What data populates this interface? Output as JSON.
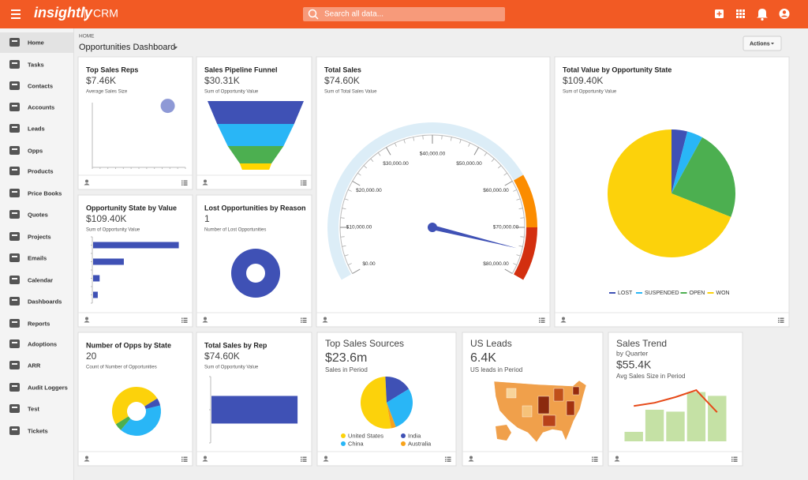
{
  "topbar": {
    "logo": "insightly",
    "app": "CRM",
    "search_placeholder": "Search all data..."
  },
  "sidebar": {
    "active": 0,
    "items": [
      "Home",
      "Tasks",
      "Contacts",
      "Accounts",
      "Leads",
      "Opps",
      "Products",
      "Price Books",
      "Quotes",
      "Projects",
      "Emails",
      "Calendar",
      "Dashboards",
      "Reports",
      "Adoptions",
      "ARR",
      "Audit Loggers",
      "Test",
      "Tickets"
    ]
  },
  "breadcrumb": "HOME",
  "page_title": "Opportunities Dashboard",
  "actions_button": "Actions",
  "widgets": [
    {
      "title": "Top Sales Reps",
      "value": "$7.46K",
      "caption": "Average Sales Size",
      "chart": {
        "type": "scatter",
        "color": "#8e99d6",
        "xlim": [
          0,
          100
        ],
        "ylim": [
          0,
          100
        ],
        "points": [
          {
            "x": 81,
            "y": 95
          }
        ]
      }
    },
    {
      "title": "Sales Pipeline Funnel",
      "value": "$30.31K",
      "caption": "Sum of Opportunity Value",
      "chart": {
        "type": "funnel",
        "values": [
          100,
          80,
          58,
          33
        ],
        "colors": [
          "#3f51b5",
          "#29b6f6",
          "#4caf50",
          "#ffd600"
        ]
      }
    },
    {
      "title": "Total Sales",
      "value": "$74.60K",
      "caption": "Sum of Total Sales Value",
      "chart": {
        "type": "gauge",
        "value": 74600,
        "ylim": [
          0,
          80000
        ],
        "yticks": [
          {
            "value": 0,
            "label": "$0.00"
          },
          {
            "value": 10000,
            "label": "$10,000.00"
          },
          {
            "value": 20000,
            "label": "$20,000.00"
          },
          {
            "value": 30000,
            "label": "$30,000.00"
          },
          {
            "value": 40000,
            "label": "$40,000.00"
          },
          {
            "value": 50000,
            "label": "$50,000.00"
          },
          {
            "value": 60000,
            "label": "$60,000.00"
          },
          {
            "value": 70000,
            "label": "$70,000.00"
          },
          {
            "value": 80000,
            "label": "$80,000.00"
          }
        ],
        "bands": [
          {
            "from": 0,
            "to": 60000,
            "color": "#dcedf7"
          },
          {
            "from": 60000,
            "to": 70000,
            "color": "#fb8c00"
          },
          {
            "from": 70000,
            "to": 80000,
            "color": "#d32f0f"
          }
        ],
        "needle_color": "#3f51b5"
      }
    },
    {
      "title": "Total Value by Opportunity State",
      "value": "$109.40K",
      "caption": "Sum of Opportunity Value",
      "chart": {
        "type": "pie",
        "categories": [
          "LOST",
          "SUSPENDED",
          "OPEN",
          "WON"
        ],
        "values": [
          4,
          4,
          23,
          69
        ],
        "colors": [
          "#3f51b5",
          "#29b6f6",
          "#4caf50",
          "#fcd20b"
        ]
      }
    },
    {
      "title": "Opportunity State by Value",
      "value": "$109.40K",
      "caption": "Sum of Opportunity Value",
      "chart": {
        "type": "hbar",
        "color": "#3f51b5",
        "xlim": [
          0,
          100
        ],
        "values": [
          92,
          33,
          7,
          5
        ]
      }
    },
    {
      "title": "Lost Opportunities by Reason",
      "value": "1",
      "caption": "Number of Lost Opportunities",
      "chart": {
        "type": "donut",
        "values": [
          1
        ],
        "colors": [
          "#3f51b5"
        ]
      }
    },
    {
      "title": "Number of Opps by State",
      "value": "20",
      "caption": "Count of Number of Opportunities",
      "chart": {
        "type": "donut",
        "values": [
          1,
          8,
          1,
          10
        ],
        "colors": [
          "#3f51b5",
          "#29b6f6",
          "#4caf50",
          "#fcd20b"
        ]
      }
    },
    {
      "title": "Total Sales by Rep",
      "value": "$74.60K",
      "caption": "Sum of Opportunity Value",
      "chart": {
        "type": "hbar",
        "color": "#3f51b5",
        "xlim": [
          0,
          80000
        ],
        "values": [
          74600
        ]
      }
    },
    {
      "title": "Top Sales Sources",
      "value": "$23.6m",
      "caption": "Sales in Period",
      "chart": {
        "type": "pie",
        "categories": [
          "United States",
          "India",
          "China",
          "Australia"
        ],
        "values": [
          52,
          17,
          28,
          3
        ],
        "colors": [
          "#fcd20b",
          "#3f51b5",
          "#29b6f6",
          "#f7a21b"
        ]
      }
    },
    {
      "title": "US Leads",
      "value": "6.4K",
      "caption": "US leads in Period",
      "chart": {
        "type": "map",
        "color": "#f0a04b"
      }
    },
    {
      "title": "Sales Trend",
      "subtitle": "by Quarter",
      "value": "$55.4K",
      "caption": "Avg Sales Size in Period",
      "chart": {
        "type": "bar_line",
        "ylim": [
          0,
          100
        ],
        "bar_color": "#c5e1a5",
        "line_color": "#e64a19",
        "values": [
          15,
          50,
          47,
          78,
          72
        ],
        "line": [
          56,
          61,
          70,
          81,
          46
        ]
      }
    }
  ]
}
